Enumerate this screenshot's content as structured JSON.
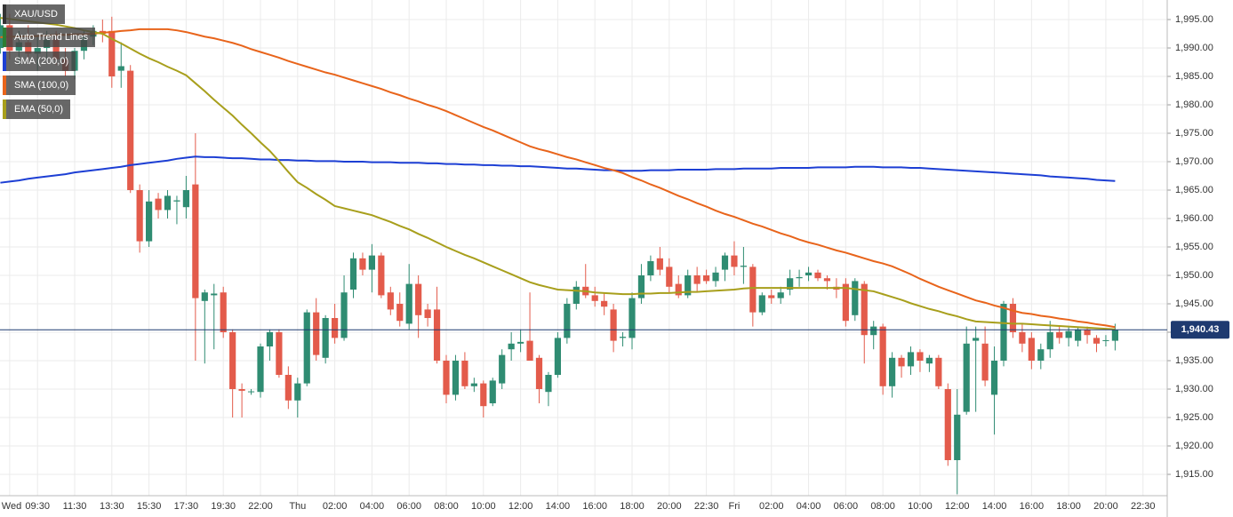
{
  "chart_data": {
    "type": "candlestick",
    "symbol": "XAU/USD",
    "overlays": [
      "Auto Trend Lines"
    ],
    "categories": [
      null,
      "Wed",
      null,
      null,
      "09:30",
      null,
      null,
      null,
      "11:30",
      null,
      null,
      null,
      "13:30",
      null,
      null,
      null,
      "15:30",
      null,
      null,
      null,
      "17:30",
      null,
      null,
      null,
      "19:30",
      null,
      null,
      null,
      "22:00",
      null,
      null,
      null,
      "Thu",
      null,
      null,
      null,
      "02:00",
      null,
      null,
      null,
      "04:00",
      null,
      null,
      null,
      "06:00",
      null,
      null,
      null,
      "08:00",
      null,
      null,
      null,
      "10:00",
      null,
      null,
      null,
      "12:00",
      null,
      null,
      null,
      "14:00",
      null,
      null,
      null,
      "16:00",
      null,
      null,
      null,
      "18:00",
      null,
      null,
      null,
      "20:00",
      null,
      null,
      null,
      "22:30",
      null,
      null,
      "Fri",
      null,
      null,
      null,
      "02:00",
      null,
      null,
      null,
      "04:00",
      null,
      null,
      null,
      "06:00",
      null,
      null,
      null,
      "08:00",
      null,
      null,
      null,
      "10:00",
      null,
      null,
      null,
      "12:00",
      null,
      null,
      null,
      "14:00",
      null,
      null,
      null,
      "16:00",
      null,
      null,
      null,
      "18:00",
      null,
      null,
      null,
      "20:00",
      null,
      null,
      null,
      "22:30"
    ],
    "open": [
      1990,
      1994,
      1989.5,
      1991,
      1989,
      1990,
      1991.5,
      1988,
      1986,
      1989.5,
      1992,
      1993,
      1993,
      1986,
      1986,
      1965,
      1956,
      1963.5,
      1961.5,
      1963,
      1962,
      1966,
      1945.5,
      1946.5,
      1947,
      1940,
      1930,
      1929.5,
      1929.5,
      1937.5,
      1940,
      1932.5,
      1928,
      1931,
      1943.5,
      1935.5,
      1942.5,
      1939,
      1947.5,
      1953,
      1951,
      1953.5,
      1947,
      1945,
      1941.5,
      1948.5,
      1944,
      1944,
      1935,
      1929,
      1935,
      1930.5,
      1931,
      1927.5,
      1931,
      1937,
      1938,
      1938.5,
      1935.5,
      1929.5,
      1932.5,
      1939,
      1945,
      1948,
      1946.5,
      1945.5,
      1944,
      1939,
      1939,
      1946,
      1950,
      1953,
      1951.5,
      1948.5,
      1946.5,
      1950,
      1950,
      1949,
      1951,
      1953.5,
      1951.5,
      1951.5,
      1943.5,
      1946.5,
      1946,
      1947.5,
      1949.5,
      1950,
      1950.5,
      1949.5,
      1948,
      1948.5,
      1943,
      1948.5,
      1939.5,
      1941,
      1930.5,
      1935.5,
      1934,
      1936.5,
      1934.5,
      1935.5,
      1930,
      1917.5,
      1926,
      1938.5,
      1938,
      1929,
      1935,
      1945,
      1940,
      1939,
      1935,
      1937,
      1940,
      1939,
      1938.5,
      1940.5,
      1939,
      1938.5,
      1938.5,
      null,
      null,
      null
    ],
    "high": [
      1996,
      1996,
      1993,
      1994,
      1992,
      1993,
      1993,
      1990,
      1990,
      1993,
      1994,
      1995,
      1995.5,
      1991,
      1987,
      1966,
      1965,
      1964.5,
      1965,
      1964,
      1967.5,
      1975,
      1947.5,
      1948.5,
      1948,
      1940.5,
      1931,
      1930,
      1938,
      1940.5,
      1940.5,
      1934,
      1932,
      1944,
      1946,
      1943,
      1945,
      1950,
      1954,
      1954,
      1955.5,
      1954,
      1948,
      1947,
      1952,
      1950,
      1945,
      1948,
      1936,
      1936,
      1936.5,
      1932,
      1931.5,
      1932,
      1937,
      1940,
      1940.5,
      1947,
      1936,
      1933,
      1940,
      1946,
      1949,
      1952,
      1948,
      1947,
      1945,
      1940,
      1947,
      1952,
      1953.5,
      1955,
      1953,
      1950,
      1951,
      1951.5,
      1951,
      1951.5,
      1954,
      1956,
      1955,
      1952,
      1947,
      1947.5,
      1948,
      1951,
      1951,
      1951.5,
      1951,
      1950,
      1949.5,
      1949.5,
      1949.5,
      1949,
      1942,
      1941.5,
      1936.5,
      1936,
      1937.5,
      1937,
      1936,
      1936,
      1931,
      1930,
      1941,
      1941,
      1941,
      1937.5,
      1945.5,
      1946,
      1941.5,
      1940,
      1938,
      1942,
      1941,
      1941,
      1941,
      1941,
      1939.5,
      1939.5,
      1941.5,
      null,
      null,
      null
    ],
    "low": [
      1989,
      1988,
      1987,
      1988,
      1986,
      1988,
      1987,
      1985,
      1984.5,
      1988,
      1990.5,
      1991,
      1983,
      1983,
      1964.5,
      1954,
      1955,
      1960,
      1960,
      1959,
      1960,
      1935,
      1934.5,
      1937,
      1939,
      1925,
      1925,
      1929,
      1928.5,
      1935,
      1932,
      1926.5,
      1925,
      1930.5,
      1935,
      1934.5,
      1938,
      1938.5,
      1946,
      1950,
      1947,
      1946,
      1943,
      1941,
      1940.5,
      1939,
      1941,
      1934.5,
      1927.5,
      1928,
      1930,
      1929.5,
      1925,
      1927,
      1930,
      1935,
      1936.5,
      1935,
      1927.5,
      1927,
      1932,
      1938,
      1944,
      1946,
      1944.5,
      1943,
      1936.5,
      1937.5,
      1937,
      1945,
      1949,
      1950,
      1947,
      1946,
      1946,
      1947,
      1948.5,
      1948,
      1949,
      1950,
      1948.5,
      1941,
      1943,
      1945,
      1945,
      1946.5,
      1948,
      1949,
      1949,
      1947.5,
      1946,
      1941,
      1942,
      1934.5,
      1937,
      1929,
      1928.5,
      1932,
      1932.5,
      1933,
      1933,
      1930,
      1916.5,
      1911.5,
      1925.5,
      1926,
      1930.5,
      1922,
      1934,
      1939,
      1936.5,
      1933.5,
      1933.5,
      1935.5,
      1938,
      1937.5,
      1937.5,
      1938,
      1936.5,
      1937.5,
      1936.8,
      null,
      null,
      null
    ],
    "close": [
      1994,
      1989.5,
      1991,
      1989,
      1990,
      1991.5,
      1988,
      1986,
      1989.5,
      1992,
      1993,
      1992.5,
      1985,
      1986.8,
      1965,
      1956,
      1963,
      1961.5,
      1964,
      1963.2,
      1965,
      1946,
      1947,
      1946.8,
      1940,
      1930,
      1929.7,
      1929.6,
      1937.5,
      1940,
      1932.5,
      1928,
      1931,
      1943.5,
      1936,
      1942.5,
      1939,
      1947,
      1953,
      1951,
      1953.5,
      1946.5,
      1944,
      1942,
      1948.5,
      1943,
      1942.5,
      1935,
      1929,
      1935,
      1930.5,
      1931,
      1927,
      1931.5,
      1936,
      1938,
      1938.3,
      1935,
      1930,
      1932.5,
      1939,
      1945,
      1948,
      1946.5,
      1945.5,
      1944.5,
      1938.5,
      1939.2,
      1946,
      1950,
      1952.5,
      1951,
      1948,
      1946.5,
      1950,
      1948.5,
      1949,
      1950.5,
      1953.5,
      1951.5,
      1951.7,
      1943.5,
      1946.5,
      1946,
      1947,
      1949.5,
      1949.7,
      1950.5,
      1949.5,
      1949,
      1947.5,
      1942,
      1949,
      1939.5,
      1941,
      1930.5,
      1935.5,
      1934,
      1936.5,
      1935,
      1935.5,
      1930.5,
      1917.5,
      1925.5,
      1938,
      1939,
      1931.5,
      1935,
      1945,
      1940,
      1938,
      1935,
      1937,
      1940,
      1939,
      1940.2,
      1940.5,
      1939.5,
      1938,
      1938.6,
      1940.43,
      null,
      null,
      null
    ],
    "up_color": "#2f8c72",
    "down_color": "#e35b4b",
    "series": [
      {
        "name": "SMA (200,0)",
        "color": "#1d3fd4",
        "values": [
          1966.3,
          1966.5,
          1966.7,
          1967.0,
          1967.2,
          1967.4,
          1967.6,
          1967.8,
          1968.1,
          1968.3,
          1968.5,
          1968.7,
          1968.9,
          1969.1,
          1969.4,
          1969.6,
          1969.8,
          1970.0,
          1970.2,
          1970.5,
          1970.7,
          1970.9,
          1970.8,
          1970.8,
          1970.7,
          1970.6,
          1970.6,
          1970.5,
          1970.4,
          1970.4,
          1970.3,
          1970.3,
          1970.2,
          1970.2,
          1970.1,
          1970.1,
          1970.1,
          1970.0,
          1970.0,
          1970.0,
          1969.9,
          1969.9,
          1969.9,
          1969.8,
          1969.8,
          1969.8,
          1969.7,
          1969.7,
          1969.6,
          1969.6,
          1969.5,
          1969.5,
          1969.4,
          1969.4,
          1969.3,
          1969.3,
          1969.2,
          1969.2,
          1969.1,
          1969.0,
          1968.9,
          1968.8,
          1968.8,
          1968.7,
          1968.6,
          1968.5,
          1968.5,
          1968.4,
          1968.4,
          1968.4,
          1968.5,
          1968.5,
          1968.5,
          1968.6,
          1968.6,
          1968.6,
          1968.6,
          1968.7,
          1968.7,
          1968.7,
          1968.8,
          1968.8,
          1968.8,
          1968.8,
          1968.9,
          1968.9,
          1968.9,
          1968.9,
          1969.0,
          1969.0,
          1969.0,
          1969.0,
          1969.1,
          1969.1,
          1969.1,
          1969.0,
          1969.0,
          1969.0,
          1968.9,
          1968.9,
          1968.8,
          1968.7,
          1968.6,
          1968.5,
          1968.4,
          1968.3,
          1968.2,
          1968.1,
          1968.0,
          1967.9,
          1967.8,
          1967.7,
          1967.6,
          1967.4,
          1967.3,
          1967.2,
          1967.1,
          1967.0,
          1966.8,
          1966.7,
          1966.6,
          null,
          null,
          null
        ]
      },
      {
        "name": "SMA (100,0)",
        "color": "#e8641b",
        "values": [
          1991.9,
          1992.0,
          1992.0,
          1992.1,
          1992.1,
          1992.2,
          1992.3,
          1992.3,
          1992.4,
          1992.4,
          1992.5,
          1992.7,
          1992.8,
          1993.0,
          1993.1,
          1993.3,
          1993.3,
          1993.3,
          1993.3,
          1993.1,
          1992.8,
          1992.4,
          1992.0,
          1991.7,
          1991.3,
          1990.9,
          1990.4,
          1989.8,
          1989.3,
          1988.8,
          1988.3,
          1987.7,
          1987.2,
          1986.7,
          1986.2,
          1985.7,
          1985.3,
          1984.8,
          1984.3,
          1983.8,
          1983.3,
          1982.8,
          1982.2,
          1981.7,
          1981.1,
          1980.6,
          1980.0,
          1979.5,
          1978.9,
          1978.2,
          1977.5,
          1976.8,
          1976.1,
          1975.5,
          1974.8,
          1974.1,
          1973.4,
          1972.7,
          1972.2,
          1971.8,
          1971.3,
          1970.8,
          1970.4,
          1969.9,
          1969.4,
          1968.9,
          1968.5,
          1968.0,
          1967.3,
          1966.7,
          1966.0,
          1965.4,
          1964.7,
          1964.0,
          1963.4,
          1962.7,
          1962.1,
          1961.4,
          1960.8,
          1960.3,
          1959.7,
          1959.1,
          1958.6,
          1958.0,
          1957.4,
          1956.9,
          1956.3,
          1955.8,
          1955.4,
          1954.9,
          1954.4,
          1954.0,
          1953.5,
          1953.0,
          1952.5,
          1952.1,
          1951.6,
          1950.9,
          1950.2,
          1949.4,
          1948.7,
          1948.0,
          1947.4,
          1946.8,
          1946.2,
          1945.6,
          1945.2,
          1944.7,
          1944.3,
          1943.8,
          1943.4,
          1943.2,
          1942.9,
          1942.7,
          1942.4,
          1942.2,
          1941.9,
          1941.7,
          1941.4,
          1941.2,
          1940.9,
          null,
          null,
          null
        ]
      },
      {
        "name": "EMA (50,0)",
        "color": "#a89f1c",
        "values": [
          1995.3,
          1995.1,
          1994.9,
          1994.7,
          1994.5,
          1994.3,
          1994.1,
          1993.8,
          1993.5,
          1993.1,
          1992.8,
          1992.5,
          1991.6,
          1990.8,
          1989.9,
          1989.0,
          1988.2,
          1987.5,
          1986.7,
          1986.0,
          1985.2,
          1983.8,
          1982.4,
          1980.9,
          1979.5,
          1978.1,
          1976.5,
          1975.0,
          1973.4,
          1971.9,
          1970.1,
          1968.2,
          1966.4,
          1965.4,
          1964.3,
          1963.3,
          1962.2,
          1961.8,
          1961.4,
          1961.0,
          1960.6,
          1960.0,
          1959.4,
          1958.7,
          1958.1,
          1957.3,
          1956.6,
          1955.8,
          1955.0,
          1954.3,
          1953.6,
          1953.0,
          1952.3,
          1951.6,
          1950.9,
          1950.2,
          1949.5,
          1948.8,
          1948.3,
          1947.9,
          1947.5,
          1947.4,
          1947.3,
          1947.2,
          1947.0,
          1946.9,
          1946.8,
          1946.7,
          1946.7,
          1946.8,
          1946.8,
          1946.9,
          1946.9,
          1947.0,
          1947.1,
          1947.1,
          1947.2,
          1947.3,
          1947.4,
          1947.5,
          1947.7,
          1947.8,
          1947.8,
          1947.8,
          1947.8,
          1947.8,
          1947.8,
          1947.8,
          1947.8,
          1947.8,
          1947.8,
          1947.8,
          1947.6,
          1947.4,
          1947.2,
          1946.7,
          1946.2,
          1945.7,
          1945.1,
          1944.6,
          1944.1,
          1943.7,
          1943.2,
          1942.8,
          1942.3,
          1941.9,
          1941.8,
          1941.7,
          1941.6,
          1941.5,
          1941.5,
          1941.4,
          1941.3,
          1941.2,
          1941.1,
          1941.0,
          1940.9,
          1940.8,
          1940.7,
          1940.6,
          1940.5,
          null,
          null,
          null
        ]
      }
    ],
    "last_price": {
      "value": 1940.43,
      "label": "1,940.43"
    },
    "price_line_color": "#1e3a70",
    "ylim": [
      1911.25,
      1998.44
    ],
    "yticks": [
      {
        "value": 1915,
        "label": "1,915.00"
      },
      {
        "value": 1920,
        "label": "1,920.00"
      },
      {
        "value": 1925,
        "label": "1,925.00"
      },
      {
        "value": 1930,
        "label": "1,930.00"
      },
      {
        "value": 1935,
        "label": "1,935.00"
      },
      {
        "value": 1940,
        "label": "1,940.00"
      },
      {
        "value": 1945,
        "label": "1,945.00"
      },
      {
        "value": 1950,
        "label": "1,950.00"
      },
      {
        "value": 1955,
        "label": "1,955.00"
      },
      {
        "value": 1960,
        "label": "1,960.00"
      },
      {
        "value": 1965,
        "label": "1,965.00"
      },
      {
        "value": 1970,
        "label": "1,970.00"
      },
      {
        "value": 1975,
        "label": "1,975.00"
      },
      {
        "value": 1980,
        "label": "1,980.00"
      },
      {
        "value": 1985,
        "label": "1,985.00"
      },
      {
        "value": 1990,
        "label": "1,990.00"
      },
      {
        "value": 1995,
        "label": "1,995.00"
      }
    ],
    "grid": true
  }
}
